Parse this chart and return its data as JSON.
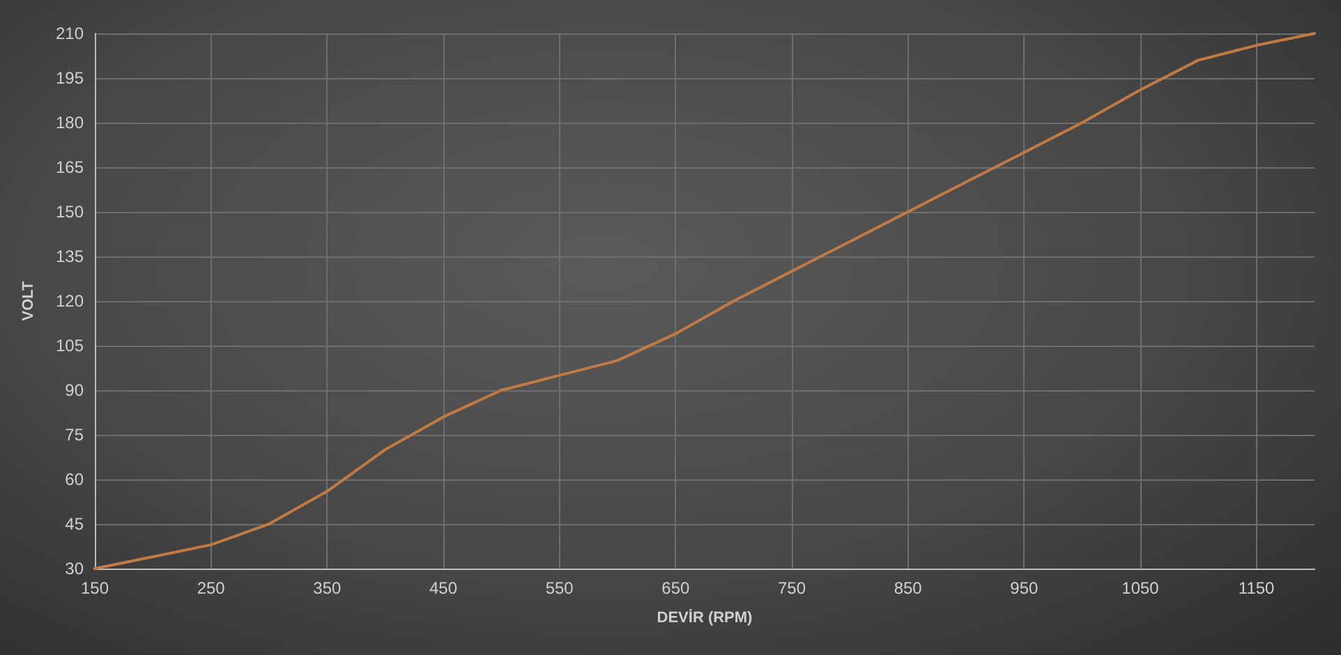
{
  "chart_data": {
    "type": "line",
    "xlabel": "DEVİR (RPM)",
    "ylabel": "VOLT",
    "x": [
      150,
      200,
      250,
      300,
      350,
      400,
      450,
      500,
      550,
      600,
      650,
      700,
      750,
      800,
      850,
      900,
      950,
      1000,
      1050,
      1100,
      1150,
      1200
    ],
    "series": [
      {
        "color": "#c27a45",
        "values": [
          30,
          34,
          38,
          45,
          56,
          70,
          81,
          90,
          95,
          100,
          109,
          120,
          130,
          140,
          150,
          160,
          170,
          180,
          191,
          201,
          206,
          210
        ]
      }
    ],
    "xlim": [
      150,
      1200
    ],
    "xticks": [
      150,
      250,
      350,
      450,
      550,
      650,
      750,
      850,
      950,
      1050,
      1150
    ],
    "ylim": [
      30,
      210
    ],
    "yticks": [
      30,
      45,
      60,
      75,
      90,
      105,
      120,
      135,
      150,
      165,
      180,
      195,
      210
    ],
    "grid": true,
    "marker": "none",
    "line_style": "solid"
  }
}
